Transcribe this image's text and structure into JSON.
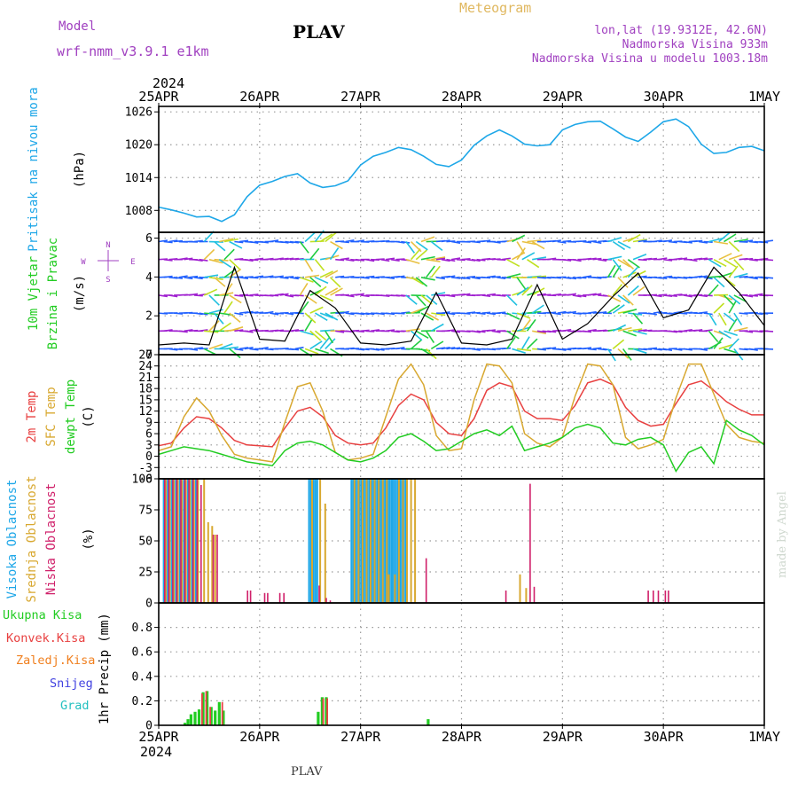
{
  "header": {
    "model_label": "Model",
    "model_name": "wrf-nmm_v3.9.1 e1km",
    "station": "PLAV",
    "title": "Meteogram",
    "lonlat": "lon,lat (19.9312E, 42.6N)",
    "altitude": "Nadmorska Visina 933m",
    "model_altitude": "Nadmorska Visina u modelu 1003.18m",
    "bottom_station": "PLAV",
    "credit": "made by Angel"
  },
  "time_axis": {
    "year": "2024",
    "labels": [
      "25APR",
      "26APR",
      "27APR",
      "28APR",
      "29APR",
      "30APR",
      "1MAY"
    ]
  },
  "colors": {
    "pressure": "#1ea7e8",
    "temp2m": "#e84040",
    "sfc": "#d8a830",
    "dewpt": "#22cc22",
    "high_cloud": "#1ea7e8",
    "mid_cloud": "#d8a830",
    "low_cloud": "#d0206a",
    "total_precip": "#22cc22",
    "conv_precip": "#e84040",
    "frozen_precip": "#f08020",
    "snow": "#4040e0",
    "graupel": "#22c0c0",
    "wind_label": "#22cc22",
    "purple": "#a040c0"
  },
  "chart_data": [
    {
      "type": "line",
      "title": "",
      "ylabel_parts": [
        "Pritisak na nivou mora",
        "(hPa)"
      ],
      "ylim": [
        1004,
        1027
      ],
      "yticks": [
        1008,
        1014,
        1020,
        1026
      ],
      "grid": true,
      "x_days": [
        0,
        0.125,
        0.25,
        0.375,
        0.5,
        0.625,
        0.75,
        0.875,
        1,
        1.125,
        1.25,
        1.375,
        1.5,
        1.625,
        1.75,
        1.875,
        2,
        2.125,
        2.25,
        2.375,
        2.5,
        2.625,
        2.75,
        2.875,
        3,
        3.125,
        3.25,
        3.375,
        3.5,
        3.625,
        3.75,
        3.875,
        4,
        4.125,
        4.25,
        4.375,
        4.5,
        4.625,
        4.75,
        4.875,
        5,
        5.125,
        5.25,
        5.375,
        5.5,
        5.625,
        5.75,
        5.875,
        6
      ],
      "series": [
        {
          "values": [
            1008.6,
            1008.1,
            1007.5,
            1006.8,
            1006.9,
            1006.0,
            1007.2,
            1010.5,
            1012.6,
            1013.3,
            1014.2,
            1014.7,
            1013.0,
            1012.2,
            1012.5,
            1013.4,
            1016.3,
            1017.9,
            1018.6,
            1019.5,
            1019.1,
            1017.9,
            1016.4,
            1016.0,
            1017.2,
            1019.9,
            1021.6,
            1022.7,
            1021.6,
            1020.1,
            1019.8,
            1020.0,
            1022.7,
            1023.7,
            1024.2,
            1024.3,
            1022.9,
            1021.4,
            1020.6,
            1022.3,
            1024.2,
            1024.7,
            1023.3,
            1020.1,
            1018.4,
            1018.6,
            1019.5,
            1019.7,
            1018.9
          ]
        }
      ]
    },
    {
      "type": "scatter",
      "title": "",
      "ylabel_parts": [
        "10m Vjetar",
        "Brzina i Pravac",
        "(m/s)"
      ],
      "compass": [
        "N",
        "W",
        "E",
        "S"
      ],
      "ylim": [
        0,
        6.3
      ],
      "yticks": [
        0,
        2,
        4,
        6
      ],
      "grid": true,
      "x_days": [
        0,
        0.25,
        0.5,
        0.75,
        1,
        1.25,
        1.5,
        1.75,
        2,
        2.25,
        2.5,
        2.75,
        3,
        3.25,
        3.5,
        3.75,
        4,
        4.25,
        4.5,
        4.75,
        5,
        5.25,
        5.5,
        5.75,
        6
      ],
      "series": [
        {
          "name": "speed",
          "values": [
            0.5,
            0.6,
            0.5,
            4.5,
            0.8,
            0.7,
            3.3,
            2.4,
            0.6,
            0.5,
            0.7,
            3.2,
            0.6,
            0.5,
            0.8,
            3.6,
            0.8,
            1.6,
            3.0,
            4.2,
            1.9,
            2.3,
            4.5,
            3.2,
            1.5
          ]
        }
      ]
    },
    {
      "type": "line",
      "title": "",
      "ylabel_parts": [
        "2m Temp",
        "SFC Temp",
        "dewpt Temp",
        "(C)"
      ],
      "ylim": [
        -6,
        27
      ],
      "yticks": [
        -6,
        -3,
        0,
        3,
        6,
        9,
        12,
        15,
        18,
        21,
        24,
        27
      ],
      "grid": true,
      "x_days": [
        0,
        0.125,
        0.25,
        0.375,
        0.5,
        0.625,
        0.75,
        0.875,
        1,
        1.125,
        1.25,
        1.375,
        1.5,
        1.625,
        1.75,
        1.875,
        2,
        2.125,
        2.25,
        2.375,
        2.5,
        2.625,
        2.75,
        2.875,
        3,
        3.125,
        3.25,
        3.375,
        3.5,
        3.625,
        3.75,
        3.875,
        4,
        4.125,
        4.25,
        4.375,
        4.5,
        4.625,
        4.75,
        4.875,
        5,
        5.125,
        5.25,
        5.375,
        5.5,
        5.625,
        5.75,
        5.875,
        6
      ],
      "series": [
        {
          "name": "2m Temp",
          "values": [
            2.8,
            3.5,
            7.5,
            10.5,
            10.0,
            7.5,
            4.2,
            3.0,
            2.8,
            2.5,
            7.5,
            12.0,
            13.0,
            10.5,
            5.5,
            3.5,
            3.0,
            3.5,
            7.5,
            13.5,
            16.5,
            15.0,
            9.0,
            6.0,
            5.5,
            10.0,
            17.5,
            19.5,
            18.5,
            12.0,
            10.0,
            10.0,
            9.5,
            13.5,
            19.5,
            20.5,
            19.0,
            13.0,
            9.5,
            8.0,
            8.5,
            14.0,
            19.0,
            20.0,
            17.5,
            14.5,
            12.5,
            11.0,
            11.0
          ]
        },
        {
          "name": "SFC Temp",
          "values": [
            1.5,
            2.5,
            10.5,
            15.5,
            12.0,
            5.5,
            0.5,
            -0.5,
            -1.0,
            -1.5,
            9.0,
            18.5,
            19.5,
            12.0,
            1.0,
            -1.0,
            -0.5,
            0.5,
            10.5,
            20.5,
            24.5,
            19.0,
            5.5,
            1.5,
            2.0,
            15.0,
            24.5,
            24.0,
            19.5,
            6.0,
            3.5,
            2.5,
            5.0,
            16.0,
            24.5,
            24.0,
            19.0,
            5.0,
            2.0,
            3.0,
            4.5,
            15.5,
            24.5,
            24.5,
            16.5,
            8.5,
            5.0,
            4.0,
            3.5
          ]
        },
        {
          "name": "dewpt Temp",
          "values": [
            0.5,
            1.5,
            2.5,
            2.0,
            1.5,
            0.5,
            -0.5,
            -1.5,
            -2.0,
            -2.5,
            1.5,
            3.5,
            4.0,
            3.0,
            1.0,
            -1.0,
            -1.5,
            -0.5,
            1.5,
            5.0,
            6.0,
            4.0,
            1.5,
            2.0,
            4.0,
            6.0,
            7.0,
            5.5,
            8.0,
            1.5,
            2.5,
            3.5,
            5.0,
            7.5,
            8.5,
            7.5,
            3.5,
            3.0,
            4.5,
            5.0,
            3.0,
            -4.0,
            1.0,
            2.5,
            -2.0,
            9.5,
            7.0,
            5.5,
            3.0
          ]
        }
      ]
    },
    {
      "type": "bar",
      "title": "",
      "ylabel_parts": [
        "Visoka Oblacnost",
        "Srednja Oblacnost",
        "Niska Oblacnost",
        "(%)"
      ],
      "ylim": [
        0,
        100
      ],
      "yticks": [
        0,
        25,
        50,
        75,
        100
      ],
      "grid": true,
      "series": [
        {
          "name": "Visoka Oblacnost",
          "x_days": [
            0.05,
            0.09,
            0.13,
            0.17,
            0.21,
            0.25,
            0.29,
            0.33,
            0.37,
            1.49,
            1.51,
            1.53,
            1.55,
            1.57,
            1.91,
            1.93,
            1.95,
            1.97,
            1.99,
            2.01,
            2.03,
            2.05,
            2.07,
            2.09,
            2.11,
            2.13,
            2.15,
            2.17,
            2.19,
            2.21,
            2.23,
            2.25,
            2.27,
            2.29,
            2.31,
            2.33,
            2.35,
            2.37,
            2.39,
            2.41,
            2.43,
            2.45
          ],
          "values": [
            100,
            100,
            100,
            100,
            100,
            100,
            100,
            100,
            100,
            100,
            100,
            100,
            100,
            100,
            100,
            100,
            100,
            100,
            100,
            100,
            100,
            100,
            100,
            100,
            100,
            100,
            100,
            100,
            100,
            100,
            100,
            100,
            100,
            100,
            100,
            100,
            100,
            100,
            100,
            100,
            100,
            100
          ]
        },
        {
          "name": "Srednja Oblacnost",
          "x_days": [
            0.07,
            0.11,
            0.15,
            0.19,
            0.23,
            0.27,
            0.31,
            0.35,
            0.39,
            0.45,
            0.49,
            0.53,
            0.56,
            1.52,
            1.6,
            1.65,
            1.94,
            1.98,
            2.02,
            2.06,
            2.1,
            2.14,
            2.18,
            2.22,
            2.26,
            2.28,
            2.34,
            2.38,
            2.42,
            2.46,
            2.5,
            2.54,
            3.58,
            3.64
          ],
          "values": [
            100,
            100,
            100,
            100,
            100,
            100,
            100,
            100,
            100,
            100,
            65,
            62,
            55,
            100,
            100,
            80,
            100,
            100,
            100,
            100,
            100,
            100,
            100,
            100,
            100,
            23,
            23,
            100,
            100,
            100,
            100,
            100,
            23,
            12
          ]
        },
        {
          "name": "Niska Oblacnost",
          "x_days": [
            0.06,
            0.1,
            0.14,
            0.18,
            0.22,
            0.26,
            0.3,
            0.34,
            0.38,
            0.42,
            0.54,
            0.58,
            0.88,
            0.91,
            1.05,
            1.08,
            1.2,
            1.24,
            1.59,
            1.66,
            1.7,
            2.65,
            3.44,
            3.68,
            3.72,
            4.85,
            4.9,
            4.95,
            5.02,
            5.05
          ],
          "values": [
            100,
            100,
            100,
            100,
            100,
            100,
            100,
            100,
            100,
            95,
            55,
            55,
            10,
            10,
            8,
            8,
            8,
            8,
            14,
            4,
            2,
            36,
            10,
            96,
            13,
            10,
            10,
            10,
            10,
            10
          ]
        }
      ]
    },
    {
      "type": "bar",
      "title": "",
      "ylabel_parts": [
        "1hr Precip",
        "(mm)"
      ],
      "legend": [
        "Ukupna Kisa",
        "Konvek.Kisa",
        "Zaledj.Kisa",
        "Snijeg",
        "Grad"
      ],
      "ylim": [
        0,
        1.0
      ],
      "yticks": [
        0,
        0.2,
        0.4,
        0.6,
        0.8
      ],
      "grid": true,
      "series": [
        {
          "name": "Ukupna Kisa",
          "x_days": [
            0.26,
            0.29,
            0.32,
            0.36,
            0.4,
            0.44,
            0.48,
            0.52,
            0.56,
            0.6,
            0.64,
            1.58,
            1.62,
            1.66,
            2.67
          ],
          "values": [
            0.02,
            0.05,
            0.09,
            0.11,
            0.13,
            0.27,
            0.28,
            0.15,
            0.12,
            0.19,
            0.12,
            0.11,
            0.23,
            0.23,
            0.05
          ]
        },
        {
          "name": "Konvek.Kisa",
          "x_days": [
            0.43,
            0.47,
            0.51,
            0.63,
            1.63,
            1.67
          ],
          "values": [
            0.26,
            0.28,
            0.15,
            0.19,
            0.22,
            0.22
          ]
        }
      ]
    }
  ]
}
